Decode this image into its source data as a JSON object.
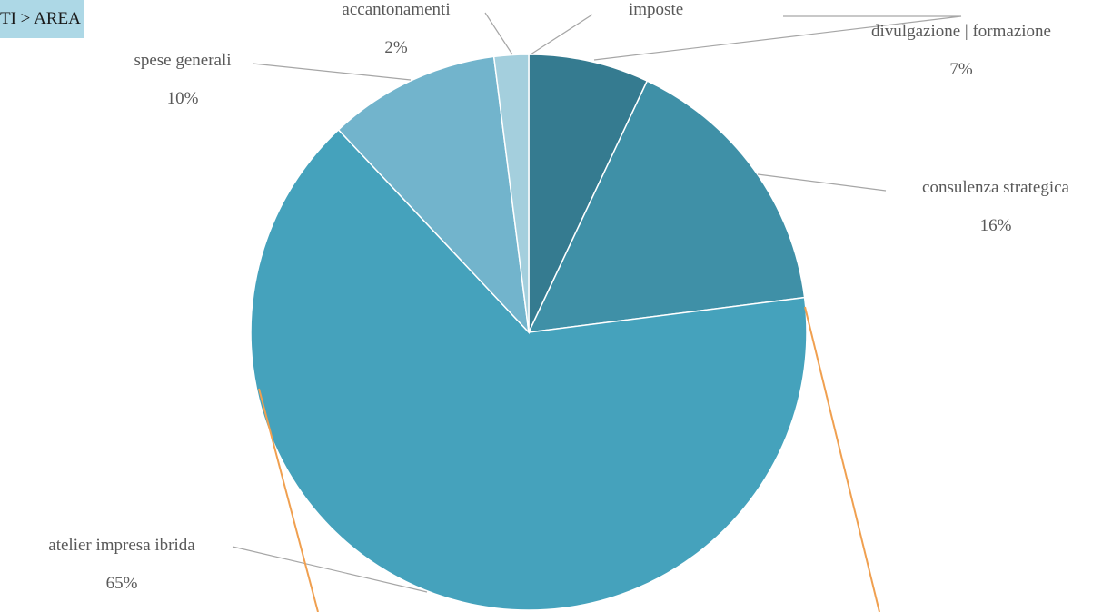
{
  "breadcrumb": {
    "text": "TI > AREA"
  },
  "chart_data": {
    "type": "pie",
    "title": "",
    "slices": [
      {
        "label": "divulgazione | formazione",
        "value": 7,
        "value_label": "7%",
        "color": "#357b90"
      },
      {
        "label": "consulenza strategica",
        "value": 16,
        "value_label": "16%",
        "color": "#3f90a7"
      },
      {
        "label": "atelier impresa ibrida",
        "value": 65,
        "value_label": "65%",
        "color": "#45a2bc"
      },
      {
        "label": "spese generali",
        "value": 10,
        "value_label": "10%",
        "color": "#72b4cc"
      },
      {
        "label": "accantonamenti",
        "value": 2,
        "value_label": "2%",
        "color": "#a4cfdd"
      },
      {
        "label": "imposte",
        "value": 0,
        "value_label": "",
        "color": "#c8e2ea"
      }
    ],
    "start_angle_deg": 0,
    "direction": "clockwise",
    "data_labels": "category-and-percent",
    "leader_lines": true,
    "accent_line_color": "#f0a050",
    "slice_separator_color": "#ffffff"
  }
}
